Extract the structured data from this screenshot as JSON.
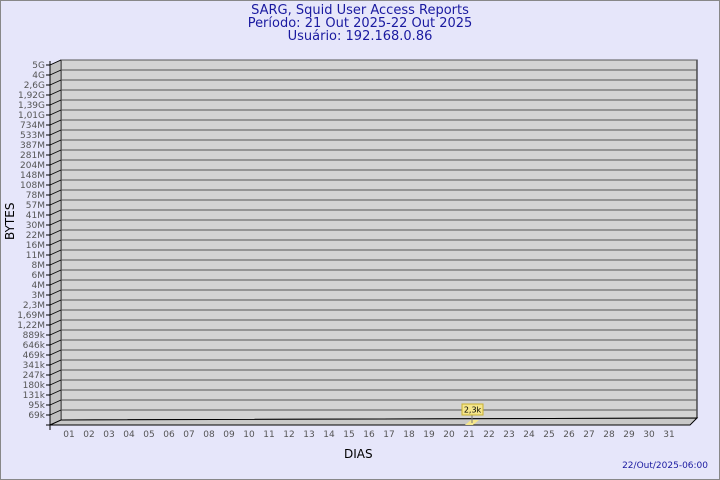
{
  "chart_data": {
    "type": "bar",
    "title": "SARG, Squid User Access Reports",
    "subtitle_period": "Período: 21 Out 2025-22 Out 2025",
    "subtitle_user": "Usuário: 192.168.0.86",
    "xlabel": "DIAS",
    "ylabel": "BYTES",
    "y_scale": "log",
    "y_tick_labels": [
      "5G",
      "4G",
      "2,6G",
      "1,92G",
      "1,39G",
      "1,01G",
      "734M",
      "533M",
      "387M",
      "281M",
      "204M",
      "148M",
      "108M",
      "78M",
      "57M",
      "41M",
      "30M",
      "22M",
      "16M",
      "11M",
      "8M",
      "6M",
      "4M",
      "3M",
      "2,3M",
      "1,69M",
      "1,22M",
      "889k",
      "646k",
      "469k",
      "341k",
      "247k",
      "180k",
      "131k",
      "95k",
      "69k"
    ],
    "categories": [
      "01",
      "02",
      "03",
      "04",
      "05",
      "06",
      "07",
      "08",
      "09",
      "10",
      "11",
      "12",
      "13",
      "14",
      "15",
      "16",
      "17",
      "18",
      "19",
      "20",
      "21",
      "22",
      "23",
      "24",
      "25",
      "26",
      "27",
      "28",
      "29",
      "30",
      "31"
    ],
    "values": [
      {
        "day": "21",
        "label": "2,3k",
        "bytes": 2300
      }
    ],
    "grid": true,
    "bar_color": "#f5e68c",
    "wall_color": "#d3d3d3"
  },
  "footer": {
    "timestamp": "22/Out/2025-06:00"
  }
}
